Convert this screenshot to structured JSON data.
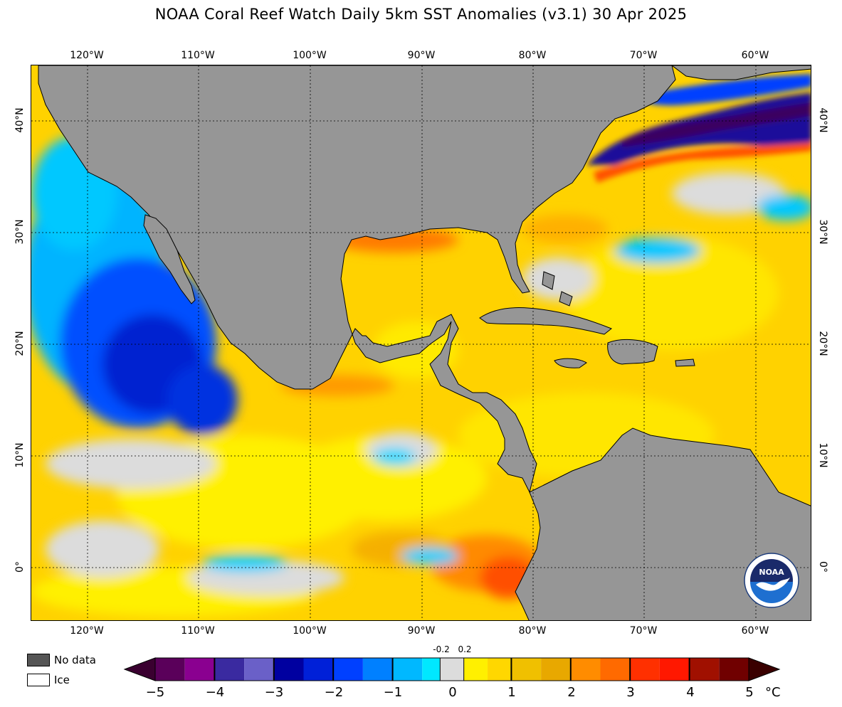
{
  "title": "NOAA Coral Reef Watch Daily 5km SST Anomalies  (v3.1)   30 Apr 2025",
  "lon_labels": [
    "120°W",
    "110°W",
    "100°W",
    "90°W",
    "80°W",
    "70°W",
    "60°W"
  ],
  "lat_labels": [
    "40°N",
    "30°N",
    "20°N",
    "10°N",
    "0°"
  ],
  "legend": {
    "no_data": "No data",
    "ice": "Ice",
    "no_data_color": "#555555",
    "ice_color": "#ffffff"
  },
  "colorbar": {
    "ticks": [
      "−5",
      "−4",
      "−3",
      "−2",
      "−1",
      "0",
      "1",
      "2",
      "3",
      "4",
      "5"
    ],
    "small_ticks": [
      "-0.2",
      "0.2"
    ],
    "unit": "°C",
    "colors": [
      "#3a0030",
      "#5a005a",
      "#7a0080",
      "#2a1e8a",
      "#5a50c0",
      "#0000b0",
      "#0030e0",
      "#0050ff",
      "#0090ff",
      "#00d0ff",
      "#dcdcdc",
      "#ffee00",
      "#ffd700",
      "#f0b000",
      "#ff8000",
      "#ff5a00",
      "#ff2800",
      "#e00000",
      "#b00000",
      "#700000",
      "#3a0000"
    ]
  },
  "colors": {
    "land": "#969696",
    "no_anomaly": "#dcdcdc",
    "warm": "#ffd200",
    "cool": "#00b4ff",
    "cold": "#0000c8"
  },
  "logo": {
    "text": "NOAA",
    "ring_text": "NATIONAL OCEANIC AND ATMOSPHERIC ADMINISTRATION · U.S. DEPARTMENT OF COMMERCE"
  }
}
